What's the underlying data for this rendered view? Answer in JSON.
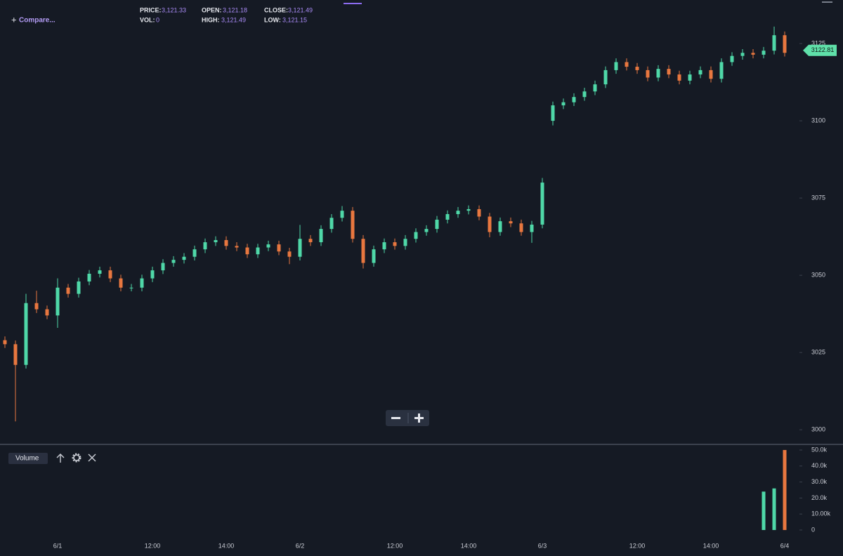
{
  "header": {
    "compare": "Compare...",
    "stats": [
      {
        "label": "PRICE:",
        "value": "3,121.33"
      },
      {
        "label": "VOL:",
        "value": "0"
      },
      {
        "label": "OPEN:",
        "value": "3,121.18"
      },
      {
        "label": "HIGH:",
        "value": "3,121.49"
      },
      {
        "label": "CLOSE:",
        "value": "3,121.49"
      },
      {
        "label": "LOW:",
        "value": "3,121.15"
      }
    ]
  },
  "chart_data": [
    {
      "type": "candlestick",
      "categories": [
        null,
        null,
        null,
        null,
        null,
        "6/1",
        null,
        null,
        null,
        null,
        null,
        null,
        null,
        null,
        "12:00",
        null,
        null,
        null,
        null,
        null,
        null,
        "14:00",
        null,
        null,
        null,
        null,
        null,
        null,
        "6/2",
        null,
        null,
        null,
        null,
        null,
        null,
        null,
        null,
        "12:00",
        null,
        null,
        null,
        null,
        null,
        null,
        "14:00",
        null,
        null,
        null,
        null,
        null,
        null,
        "6/3",
        null,
        null,
        null,
        null,
        null,
        null,
        null,
        null,
        "12:00",
        null,
        null,
        null,
        null,
        null,
        null,
        "14:00",
        null,
        null,
        null,
        null,
        null,
        null,
        "6/4"
      ],
      "open": [
        3029,
        3027.7,
        3021,
        3041,
        3039,
        3037,
        3046,
        3044,
        3048,
        3050.5,
        3051.6,
        3049,
        3046,
        3046,
        3049,
        3051.6,
        3054,
        3055,
        3056,
        3058.4,
        3060.7,
        3061.4,
        3059.5,
        3059,
        3056.8,
        3059,
        3060,
        3057.7,
        3056,
        3061.8,
        3060.7,
        3065,
        3068.6,
        3070.9,
        3061.8,
        3054,
        3058.4,
        3060.7,
        3059.5,
        3061.8,
        3064,
        3065,
        3068,
        3069.8,
        3070.9,
        3071.4,
        3069,
        3064,
        3067.5,
        3066.8,
        3064,
        3066.4,
        3100,
        3105,
        3106,
        3107.7,
        3109.5,
        3111.8,
        3116.4,
        3119,
        3117.5,
        3116.4,
        3114,
        3116.8,
        3115,
        3113,
        3115,
        3116.4,
        3113.6,
        3119,
        3121,
        3122,
        3121.4,
        3122.7,
        3127.7
      ],
      "high": [
        3030.2,
        3028.9,
        3044,
        3045,
        3040.2,
        3049,
        3047.2,
        3049.2,
        3051.7,
        3052.8,
        3052.8,
        3050.2,
        3047.2,
        3050.2,
        3052.8,
        3055.2,
        3056.2,
        3057.2,
        3059.6,
        3061.9,
        3062.6,
        3062.6,
        3060.7,
        3060.2,
        3060.2,
        3061.2,
        3061.2,
        3058.9,
        3066.3,
        3063,
        3066.2,
        3069.8,
        3072.4,
        3072.1,
        3063,
        3059.6,
        3061.9,
        3061.9,
        3063,
        3065.2,
        3066.2,
        3069.2,
        3071,
        3072.1,
        3072.6,
        3072.6,
        3070.2,
        3068.7,
        3068.7,
        3068,
        3067.6,
        3081.5,
        3106.2,
        3107.2,
        3108.9,
        3110.7,
        3113,
        3117.6,
        3120.2,
        3120.2,
        3118.7,
        3117.6,
        3118,
        3118,
        3116.2,
        3116.2,
        3117.6,
        3117.6,
        3120.2,
        3122.2,
        3123.2,
        3123.2,
        3123.9,
        3130.5,
        3128.9
      ],
      "low": [
        3026.5,
        3002.7,
        3019.8,
        3037.8,
        3035.8,
        3033,
        3042.8,
        3042.8,
        3046.8,
        3049.3,
        3047.8,
        3044.8,
        3044.8,
        3044.8,
        3047.8,
        3050.4,
        3052.8,
        3053.8,
        3054.8,
        3057.2,
        3059.5,
        3058.3,
        3057.8,
        3055.6,
        3055.6,
        3057.8,
        3056.5,
        3053.6,
        3054.8,
        3059.5,
        3059.5,
        3063.8,
        3067.4,
        3060.6,
        3052.2,
        3052.8,
        3057.2,
        3058.3,
        3058.3,
        3060.6,
        3062.8,
        3063.8,
        3066.8,
        3068.6,
        3069.7,
        3067.8,
        3062.3,
        3062.8,
        3065.6,
        3062.8,
        3060.5,
        3065.2,
        3098.5,
        3103.8,
        3104.8,
        3106.5,
        3108.3,
        3110.6,
        3115.2,
        3116.3,
        3115.2,
        3112.8,
        3112.8,
        3113.8,
        3111.8,
        3111.8,
        3113.8,
        3112.4,
        3112.4,
        3117.8,
        3119.8,
        3120.2,
        3120.2,
        3121.5,
        3120.8
      ],
      "close": [
        3027.7,
        3021,
        3041,
        3039,
        3037,
        3046,
        3044,
        3048,
        3050.5,
        3051.6,
        3049,
        3046,
        3046,
        3049,
        3051.6,
        3054,
        3055,
        3056,
        3058.4,
        3060.7,
        3061.4,
        3059.5,
        3059,
        3056.8,
        3059,
        3060,
        3057.7,
        3056,
        3061.8,
        3060.7,
        3065,
        3068.6,
        3070.9,
        3061.8,
        3054,
        3058.4,
        3060.7,
        3059.5,
        3061.8,
        3064,
        3065,
        3068,
        3069.8,
        3070.9,
        3071.4,
        3069,
        3064,
        3067.5,
        3066.8,
        3064,
        3066.4,
        3080,
        3105,
        3106,
        3107.7,
        3109.5,
        3111.8,
        3116.4,
        3119,
        3117.5,
        3116.4,
        3114,
        3116.8,
        3115,
        3113,
        3115,
        3116.4,
        3113.6,
        3119,
        3121,
        3122,
        3121.4,
        3122.7,
        3127.7,
        3122
      ],
      "up_color": "#4fd8a8",
      "down_color": "#e8773f",
      "ylim": [
        2995.5,
        3139.1
      ],
      "yticks": [
        3000,
        3025,
        3050,
        3075,
        3100,
        3125
      ],
      "last_price": 3122.81,
      "last_price_color": "#5fe0a9"
    },
    {
      "type": "bar",
      "title": "Volume",
      "values": [
        0,
        0,
        0,
        0,
        0,
        0,
        0,
        0,
        0,
        0,
        0,
        0,
        0,
        0,
        0,
        0,
        0,
        0,
        0,
        0,
        0,
        0,
        0,
        0,
        0,
        0,
        0,
        0,
        0,
        0,
        0,
        0,
        0,
        0,
        0,
        0,
        0,
        0,
        0,
        0,
        0,
        0,
        0,
        0,
        0,
        0,
        0,
        0,
        0,
        0,
        0,
        0,
        0,
        0,
        0,
        0,
        0,
        0,
        0,
        0,
        0,
        0,
        0,
        0,
        0,
        0,
        0,
        0,
        0,
        0,
        0,
        0,
        24000,
        26000,
        50000
      ],
      "ylim": [
        -4400,
        52200
      ],
      "yticks": [
        0,
        {
          "value": 10000,
          "label": "10.00k"
        },
        {
          "value": 20000,
          "label": "20.0k"
        },
        {
          "value": 30000,
          "label": "30.0k"
        },
        {
          "value": 40000,
          "label": "40.0k"
        },
        {
          "value": 50000,
          "label": "50.0k"
        }
      ]
    }
  ]
}
